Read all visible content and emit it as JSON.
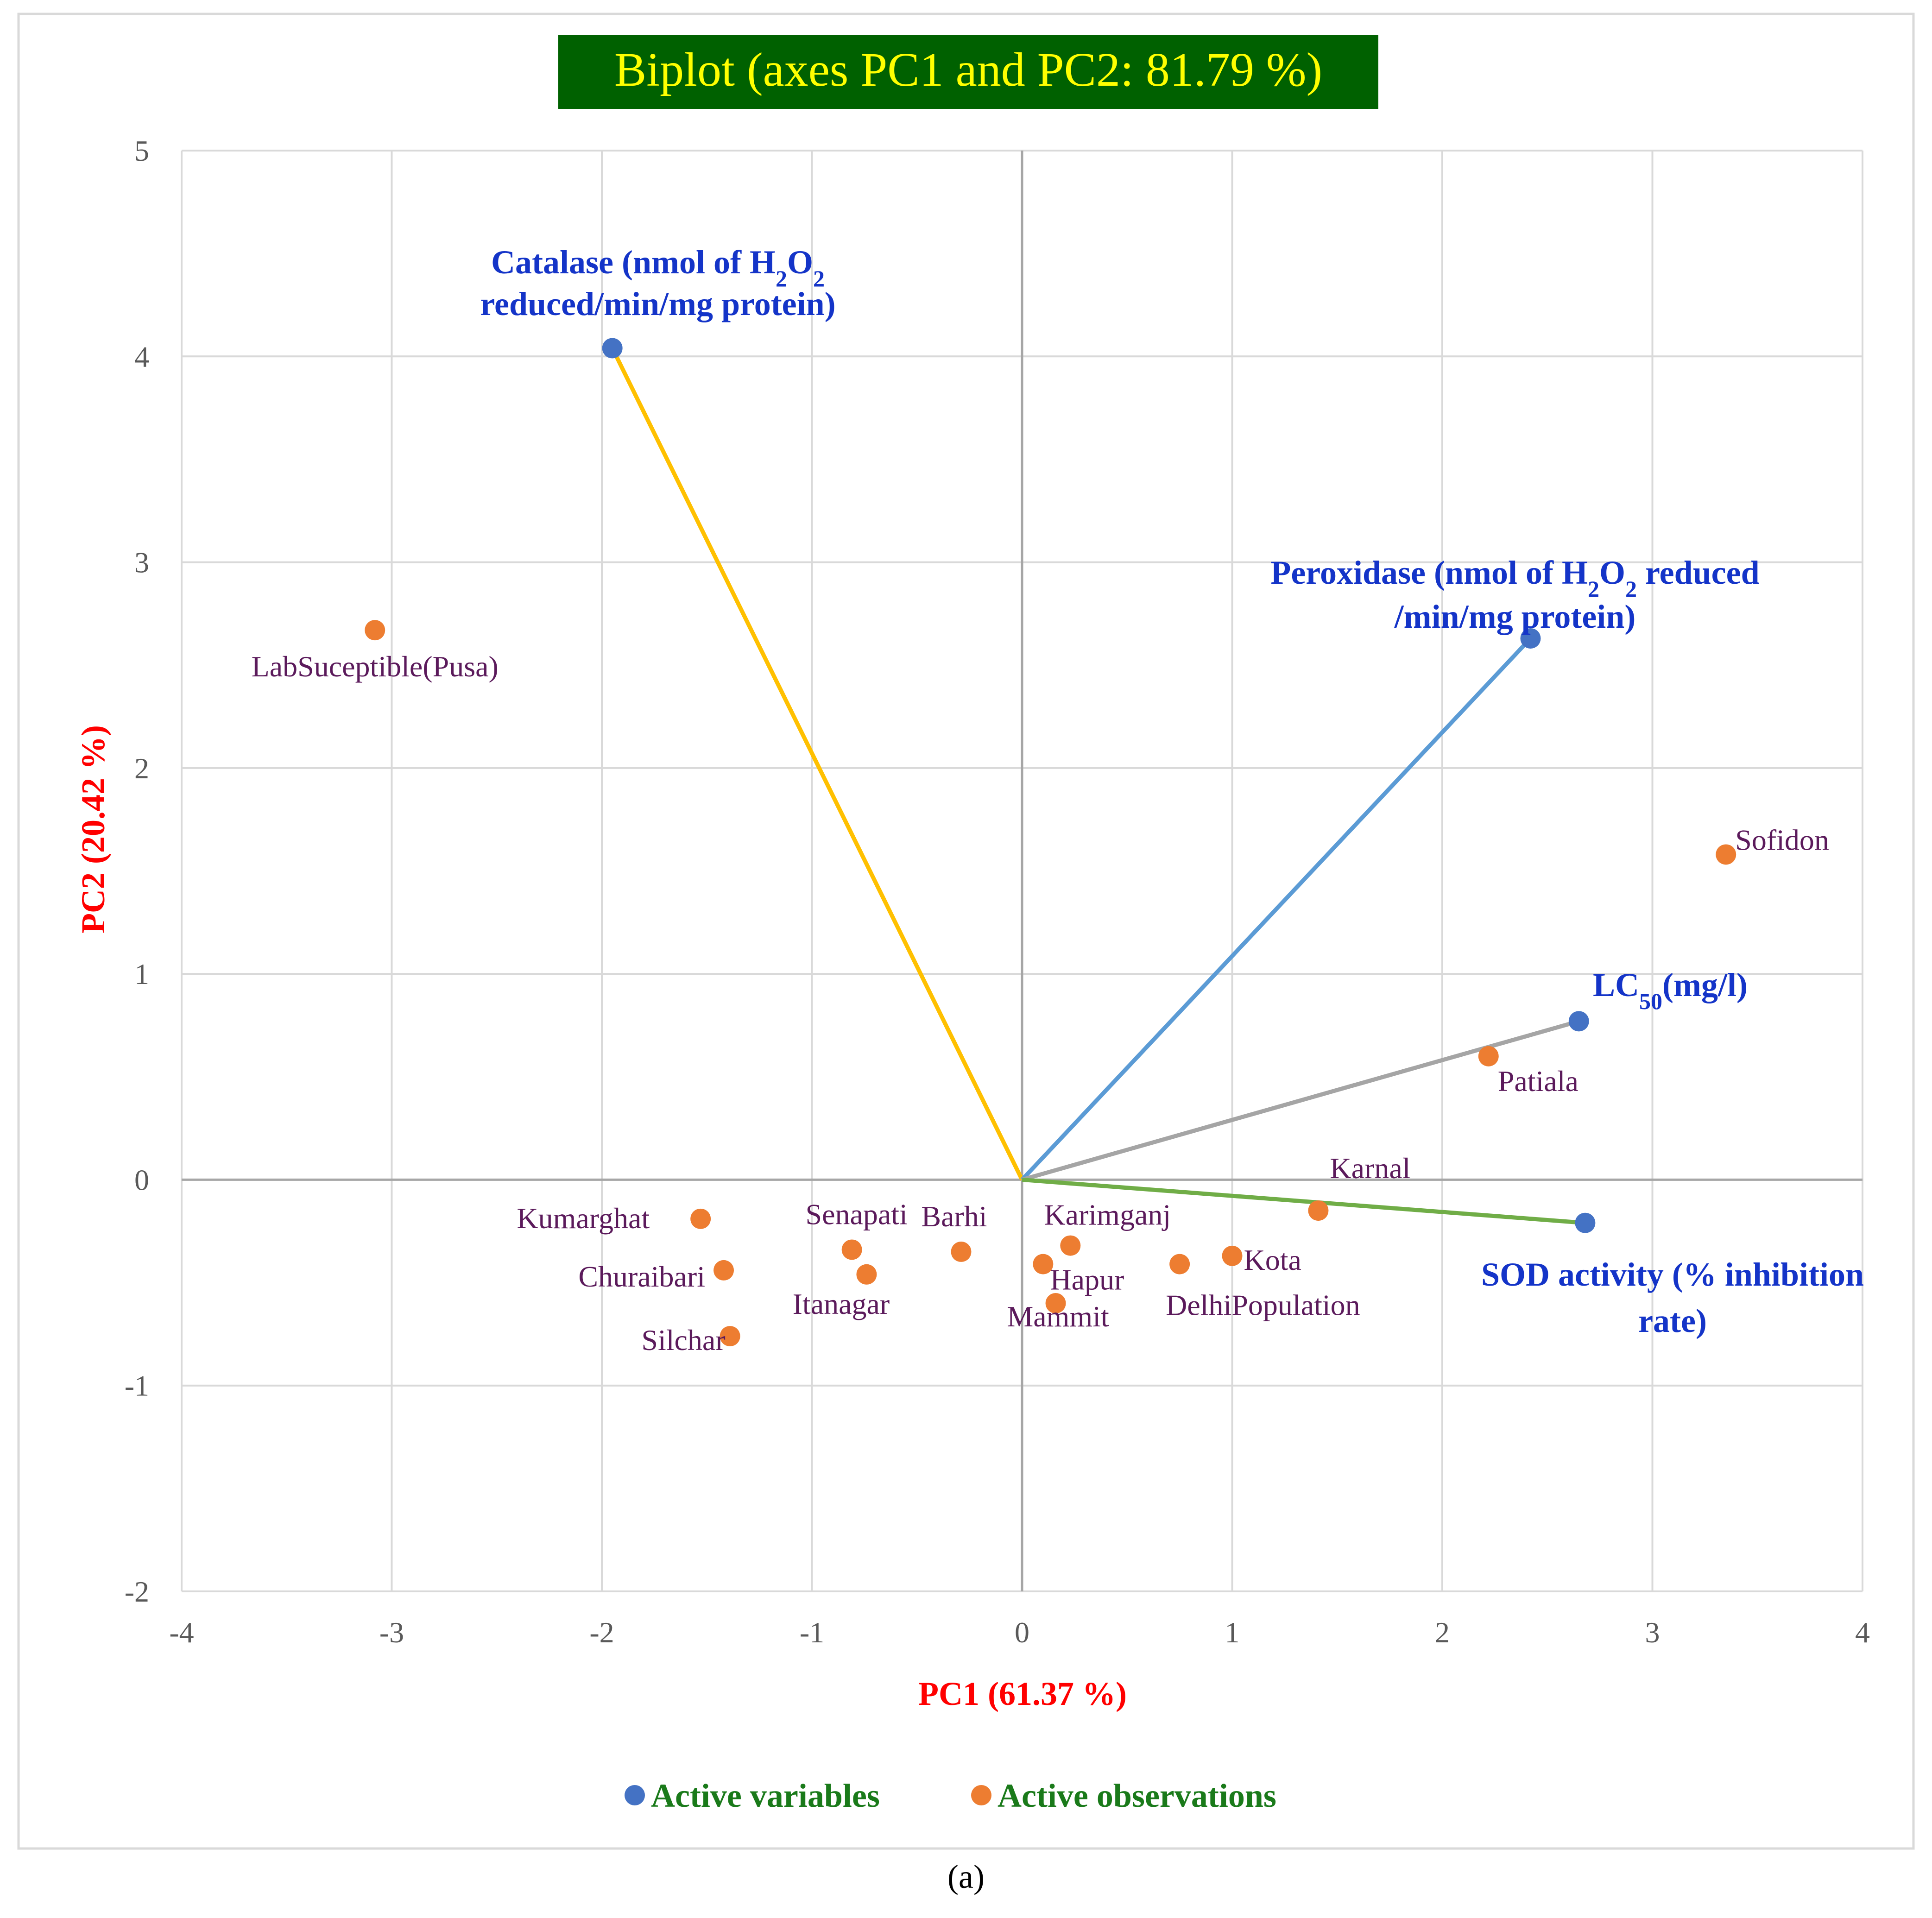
{
  "colors": {
    "variable_point": "#4472c4",
    "observation_point": "#ed7d31",
    "title_bg": "#006100",
    "title_text": "#ffff00",
    "vector_catalase": "#ffc000",
    "vector_peroxidase": "#5b9bd5",
    "vector_lc50": "#a5a5a5",
    "vector_sod": "#70ad47"
  },
  "chart_data": {
    "type": "scatter",
    "title": "Biplot (axes PC1 and PC2: 81.79 %)",
    "xlabel": "PC1 (61.37 %)",
    "ylabel": "PC2 (20.42 %)",
    "xlim": [
      -4,
      4
    ],
    "ylim": [
      -2,
      5
    ],
    "xticks": [
      "-4",
      "-3",
      "-2",
      "-1",
      "0",
      "1",
      "2",
      "3",
      "4"
    ],
    "yticks": [
      "-2",
      "-1",
      "0",
      "1",
      "2",
      "3",
      "4",
      "5"
    ],
    "grid": true,
    "legend": [
      "Active variables",
      "Active observations"
    ],
    "caption": "(a)",
    "variables": [
      {
        "id": "catalase",
        "x": -1.95,
        "y": 4.04,
        "label_parts": [
          {
            "t": "Catalase (nmol of H"
          },
          {
            "t": "2",
            "sub": true
          },
          {
            "t": "O"
          },
          {
            "t": "2",
            "sub": true
          }
        ],
        "label_line2": "reduced/min/mg protein)"
      },
      {
        "id": "peroxidase",
        "x": 2.42,
        "y": 2.63,
        "label_parts": [
          {
            "t": "Peroxidase (nmol of H"
          },
          {
            "t": "2",
            "sub": true
          },
          {
            "t": "O"
          },
          {
            "t": "2",
            "sub": true
          },
          {
            "t": " reduced"
          }
        ],
        "label_line2": "/min/mg protein)"
      },
      {
        "id": "lc50",
        "x": 2.65,
        "y": 0.77,
        "label_parts": [
          {
            "t": "LC"
          },
          {
            "t": "50",
            "sub": true
          },
          {
            "t": "(mg/l)"
          }
        ],
        "label_line2": ""
      },
      {
        "id": "sod",
        "x": 2.68,
        "y": -0.21,
        "label_parts": [
          {
            "t": "SOD activity (% inhibition"
          }
        ],
        "label_line2": "rate)"
      }
    ],
    "observations": [
      {
        "name": "LabSuceptible(Pusa)",
        "x": -3.08,
        "y": 2.67
      },
      {
        "name": "Sofidon",
        "x": 3.35,
        "y": 1.58
      },
      {
        "name": "Patiala",
        "x": 2.22,
        "y": 0.6
      },
      {
        "name": "Karnal",
        "x": 1.41,
        "y": -0.15
      },
      {
        "name": "Kumarghat",
        "x": -1.53,
        "y": -0.19
      },
      {
        "name": "Senapati",
        "x": -0.81,
        "y": -0.34
      },
      {
        "name": "Barhi",
        "x": -0.29,
        "y": -0.35
      },
      {
        "name": "Karimganj",
        "x": 0.23,
        "y": -0.32
      },
      {
        "name": "Hapur",
        "x": 0.1,
        "y": -0.41
      },
      {
        "name": "Kota",
        "x": 1.0,
        "y": -0.37
      },
      {
        "name": "DelhiPopulation",
        "x": 0.75,
        "y": -0.41
      },
      {
        "name": "Churaibari",
        "x": -1.42,
        "y": -0.44
      },
      {
        "name": "Itanagar",
        "x": -0.74,
        "y": -0.46
      },
      {
        "name": "Mammit",
        "x": 0.16,
        "y": -0.6
      },
      {
        "name": "Silchar",
        "x": -1.39,
        "y": -0.76
      }
    ]
  }
}
